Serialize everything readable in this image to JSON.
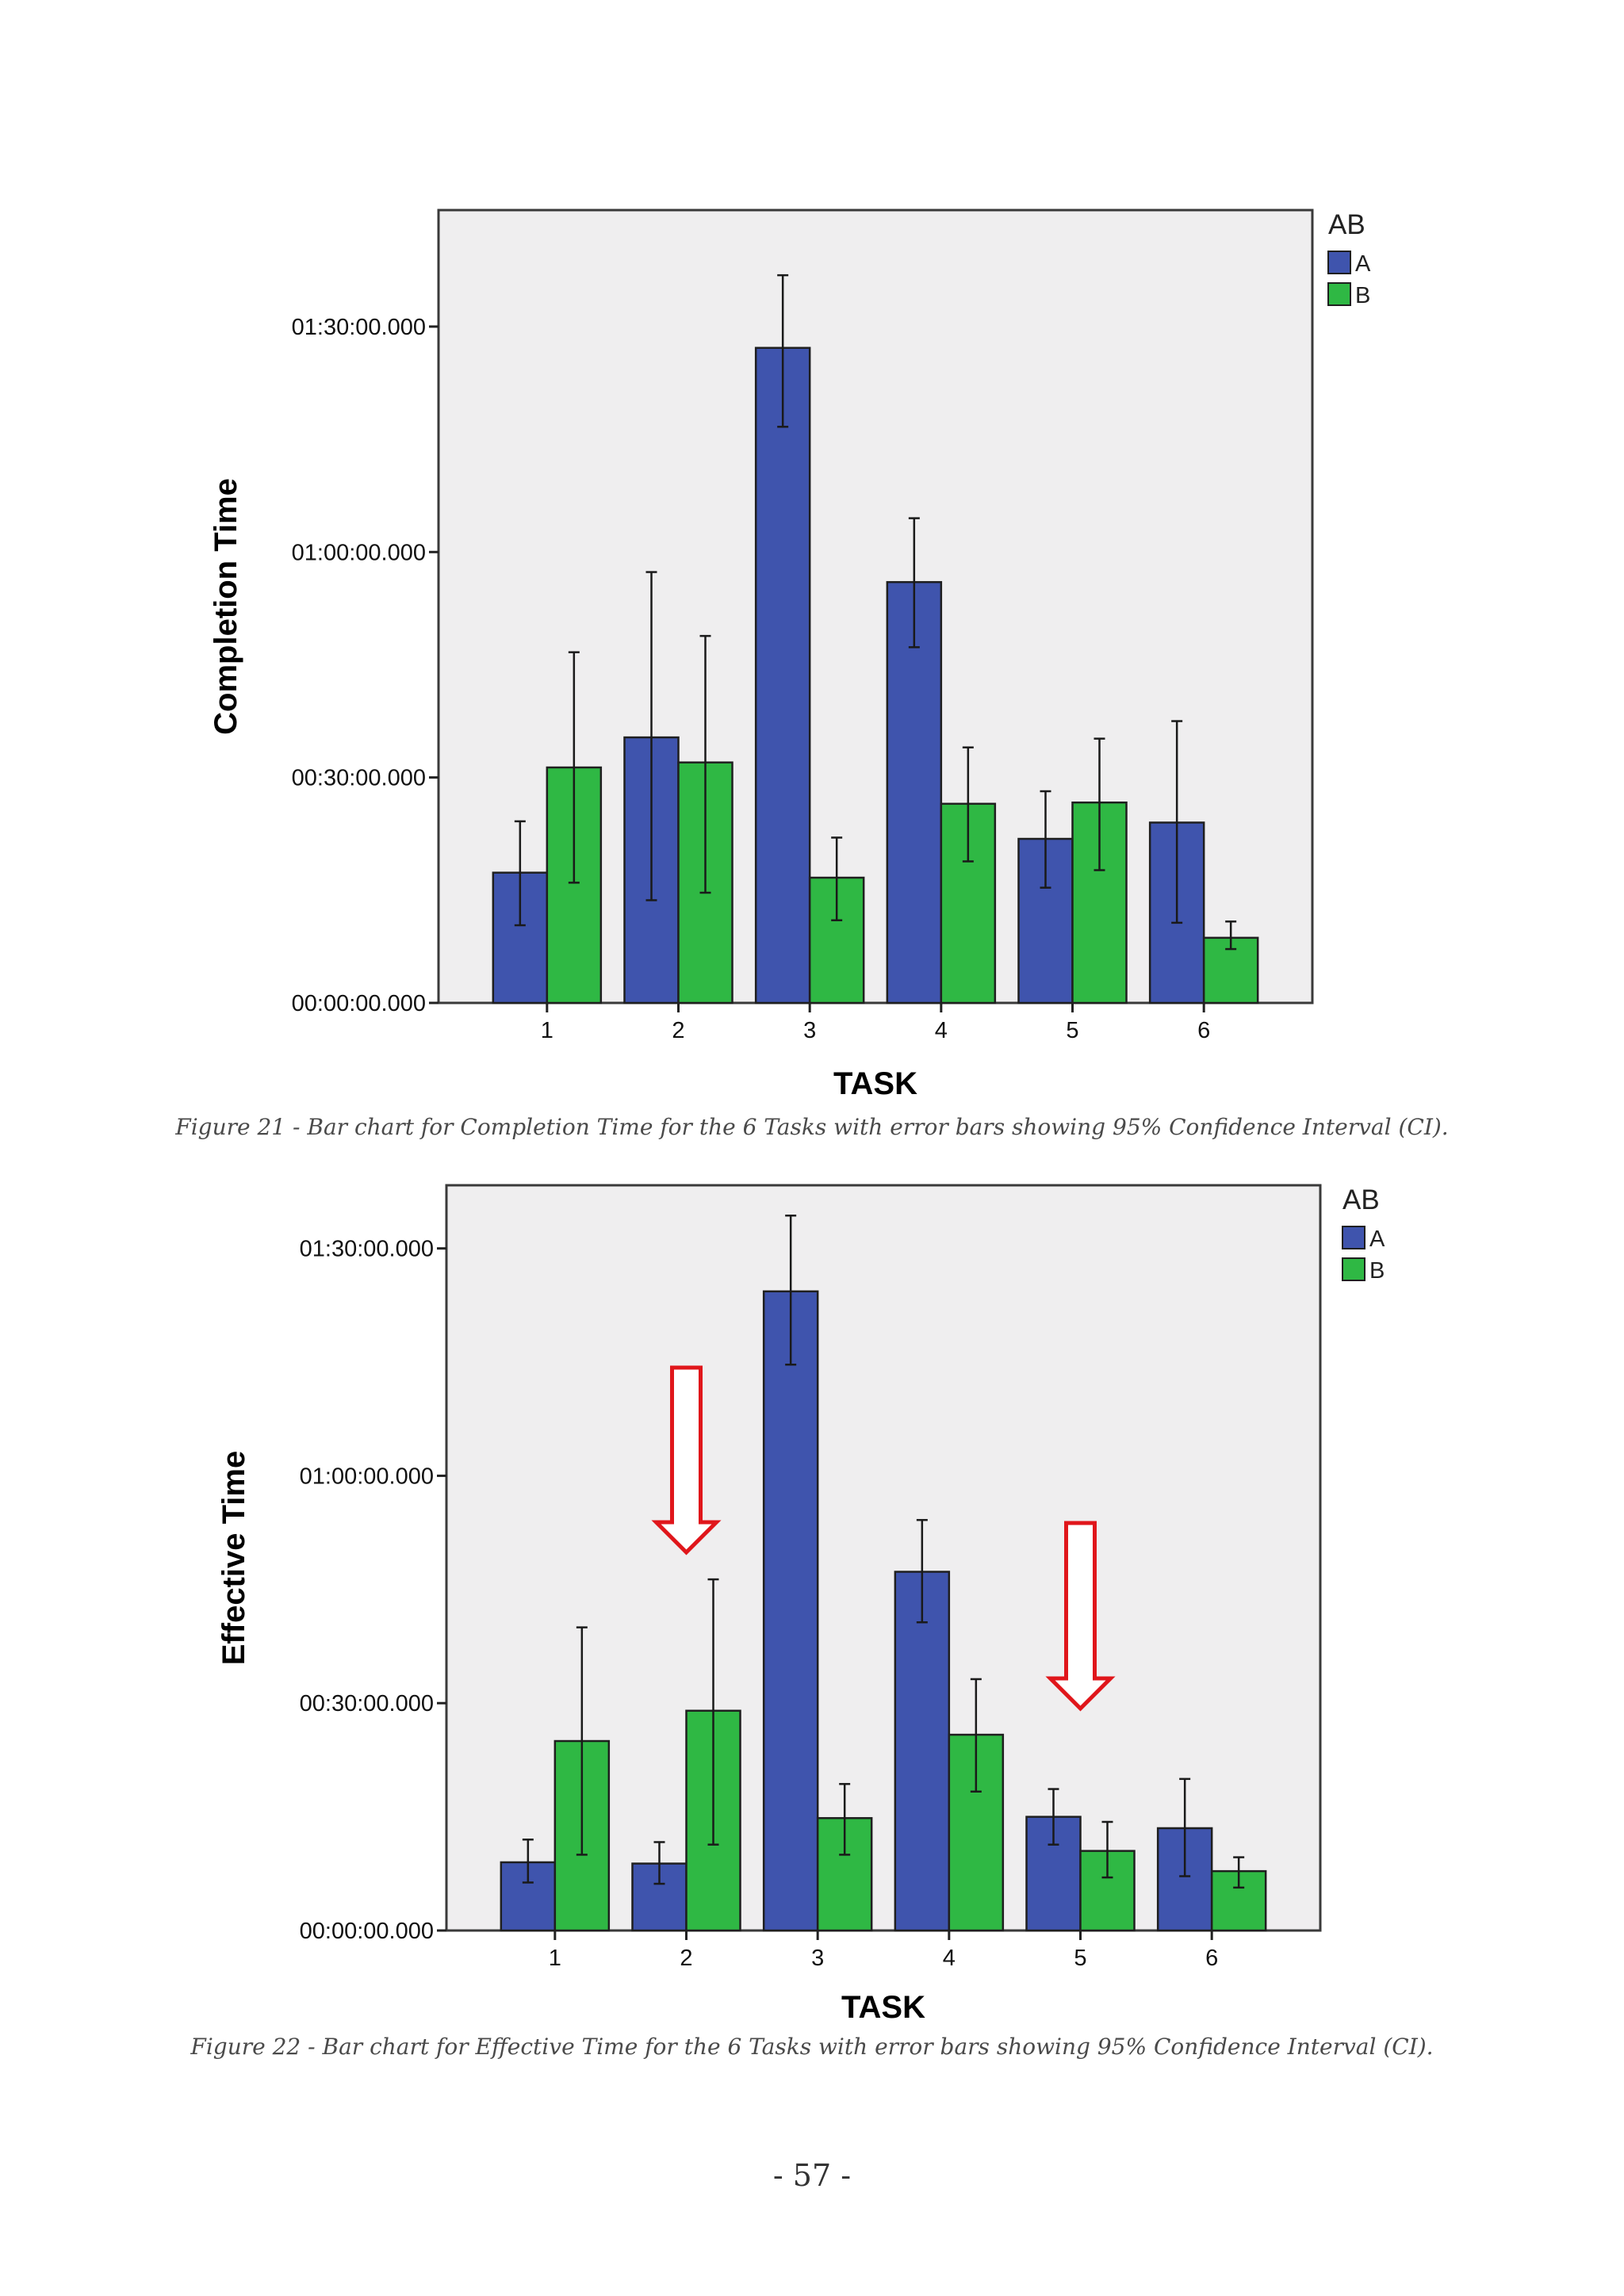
{
  "chart_data": [
    {
      "type": "bar",
      "title": "",
      "xlabel": "TASK",
      "ylabel": "Completion Time",
      "categories": [
        "1",
        "2",
        "3",
        "4",
        "5",
        "6"
      ],
      "y_ticks": [
        {
          "value": 0,
          "label": "00:00:00.000"
        },
        {
          "value": 1800,
          "label": "00:30:00.000"
        },
        {
          "value": 3600,
          "label": "01:00:00.000"
        },
        {
          "value": 5400,
          "label": "01:30:00.000"
        }
      ],
      "ylim": [
        0,
        6330
      ],
      "y_units": "seconds",
      "legend": {
        "title": "AB",
        "placement": "top-right, outside plot"
      },
      "error_bars": "95% Confidence Interval",
      "series": [
        {
          "name": "A",
          "color": "#3f54ad",
          "values": [
            1040,
            2120,
            5230,
            3360,
            1310,
            1440
          ],
          "ci_low": [
            620,
            820,
            4600,
            2840,
            920,
            640
          ],
          "ci_high": [
            1450,
            3440,
            5810,
            3870,
            1690,
            2250
          ]
        },
        {
          "name": "B",
          "color": "#2fb844",
          "values": [
            1880,
            1920,
            1000,
            1590,
            1600,
            520
          ],
          "ci_low": [
            960,
            880,
            660,
            1130,
            1060,
            430
          ],
          "ci_high": [
            2800,
            2930,
            1320,
            2040,
            2110,
            650
          ]
        }
      ],
      "plot_background": "#efeeef",
      "caption": "Figure 21 - Bar chart for Completion Time for the 6 Tasks with error bars showing 95% Confidence Interval (CI).",
      "annotations": []
    },
    {
      "type": "bar",
      "title": "",
      "xlabel": "TASK",
      "ylabel": "Effective Time",
      "categories": [
        "1",
        "2",
        "3",
        "4",
        "5",
        "6"
      ],
      "y_ticks": [
        {
          "value": 0,
          "label": "00:00:00.000"
        },
        {
          "value": 1800,
          "label": "00:30:00.000"
        },
        {
          "value": 3600,
          "label": "01:00:00.000"
        },
        {
          "value": 5400,
          "label": "01:30:00.000"
        }
      ],
      "ylim": [
        0,
        5900
      ],
      "y_units": "seconds",
      "legend": {
        "title": "AB",
        "placement": "top-right, outside plot"
      },
      "error_bars": "95% Confidence Interval",
      "series": [
        {
          "name": "A",
          "color": "#3f54ad",
          "values": [
            540,
            530,
            5060,
            2840,
            900,
            810
          ],
          "ci_low": [
            380,
            370,
            4480,
            2440,
            680,
            430
          ],
          "ci_high": [
            720,
            700,
            5660,
            3250,
            1120,
            1200
          ]
        },
        {
          "name": "B",
          "color": "#2fb844",
          "values": [
            1500,
            1740,
            890,
            1550,
            630,
            470
          ],
          "ci_low": [
            600,
            680,
            600,
            1100,
            420,
            340
          ],
          "ci_high": [
            2400,
            2780,
            1160,
            1990,
            860,
            580
          ]
        }
      ],
      "plot_background": "#efeeef",
      "caption": "Figure 22 - Bar chart for Effective Time for the 6 Tasks with error bars showing 95% Confidence Interval (CI).",
      "annotations": [
        {
          "type": "down-arrow",
          "color": "#e0161b",
          "category": "2"
        },
        {
          "type": "down-arrow",
          "color": "#e0161b",
          "category": "5"
        }
      ]
    }
  ],
  "page_number": "- 57 -"
}
